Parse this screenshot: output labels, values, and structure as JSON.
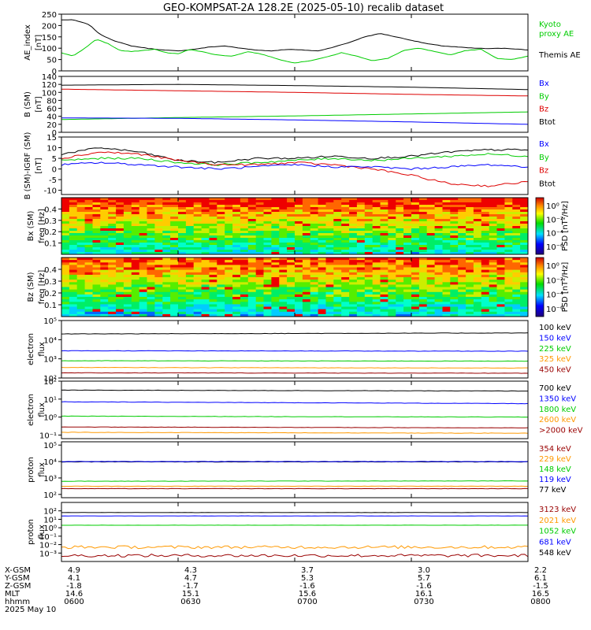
{
  "title": "GEO-KOMPSAT-2A 128.2E (2025-05-10) recalib dataset",
  "chart_data": [
    {
      "panel": "ae",
      "type": "line",
      "ylabel": "AE_index [nT]",
      "ylim": [
        0,
        250
      ],
      "yticks": [
        "0",
        "50",
        "100",
        "150",
        "200",
        "250"
      ],
      "legend": [
        {
          "label": "Kyoto proxy AE",
          "color": "#00cc00"
        },
        {
          "label": "Themis AE",
          "color": "#000000"
        }
      ],
      "series": [
        {
          "name": "Themis AE",
          "color": "#000000",
          "t": [
            0,
            3,
            7,
            10,
            14,
            18,
            22,
            26,
            30,
            34,
            38,
            42,
            46,
            50,
            54,
            58,
            62,
            66,
            70,
            74,
            78,
            82,
            86,
            90,
            94,
            98,
            102,
            106,
            110,
            114,
            118,
            120
          ],
          "y": [
            225,
            225,
            205,
            160,
            130,
            110,
            100,
            92,
            88,
            95,
            105,
            110,
            100,
            92,
            88,
            95,
            92,
            88,
            105,
            125,
            150,
            165,
            150,
            135,
            120,
            110,
            105,
            100,
            98,
            100,
            95,
            92
          ]
        },
        {
          "name": "Kyoto proxy AE",
          "color": "#00cc00",
          "t": [
            0,
            3,
            6,
            9,
            12,
            15,
            18,
            21,
            24,
            27,
            30,
            33,
            36,
            40,
            44,
            48,
            52,
            56,
            60,
            64,
            68,
            72,
            76,
            80,
            84,
            88,
            92,
            96,
            100,
            104,
            108,
            112,
            116,
            120
          ],
          "y": [
            80,
            65,
            100,
            140,
            120,
            90,
            85,
            90,
            95,
            80,
            75,
            95,
            85,
            70,
            65,
            85,
            72,
            50,
            35,
            45,
            60,
            80,
            65,
            45,
            55,
            90,
            100,
            85,
            70,
            90,
            95,
            55,
            50,
            65
          ]
        }
      ]
    },
    {
      "panel": "b_sm",
      "type": "line",
      "ylabel": "B (SM) [nT]",
      "ylim": [
        0,
        140
      ],
      "yticks": [
        "0",
        "20",
        "40",
        "60",
        "80",
        "100",
        "120",
        "140"
      ],
      "legend": [
        {
          "label": "Bx",
          "color": "#0000ff"
        },
        {
          "label": "By",
          "color": "#00cc00"
        },
        {
          "label": "Bz",
          "color": "#dd0000"
        },
        {
          "label": "Btot",
          "color": "#000000"
        }
      ],
      "series": [
        {
          "name": "Btot",
          "color": "#000000",
          "t": [
            0,
            30,
            60,
            90,
            120
          ],
          "y": [
            118,
            120,
            117,
            113,
            107
          ]
        },
        {
          "name": "Bz",
          "color": "#dd0000",
          "t": [
            0,
            30,
            60,
            90,
            120
          ],
          "y": [
            108,
            104,
            100,
            95,
            91
          ]
        },
        {
          "name": "By",
          "color": "#00cc00",
          "t": [
            0,
            30,
            60,
            90,
            120
          ],
          "y": [
            32,
            37,
            41,
            46,
            51
          ]
        },
        {
          "name": "Bx",
          "color": "#0000ff",
          "t": [
            0,
            30,
            60,
            90,
            120
          ],
          "y": [
            36,
            35,
            31,
            26,
            20
          ]
        }
      ]
    },
    {
      "panel": "b_igrf",
      "type": "line",
      "ylabel": "B (SM)-IGRF (SM) [nT]",
      "ylim": [
        -12,
        15
      ],
      "yticks": [
        "-10",
        "-5",
        "0",
        "5",
        "10",
        "15"
      ],
      "legend": [
        {
          "label": "Bx",
          "color": "#0000ff"
        },
        {
          "label": "By",
          "color": "#00cc00"
        },
        {
          "label": "Bz",
          "color": "#dd0000"
        },
        {
          "label": "Btot",
          "color": "#000000"
        }
      ],
      "series": [
        {
          "name": "Btot",
          "color": "#000000",
          "t": [
            0,
            10,
            20,
            30,
            40,
            50,
            60,
            70,
            80,
            90,
            100,
            110,
            120
          ],
          "y": [
            7,
            10,
            8,
            4,
            3,
            5,
            5,
            6,
            5,
            6,
            8,
            9,
            9
          ]
        },
        {
          "name": "By",
          "color": "#00cc00",
          "t": [
            0,
            10,
            20,
            30,
            40,
            50,
            60,
            70,
            80,
            90,
            100,
            110,
            120
          ],
          "y": [
            4,
            5,
            5,
            3,
            2,
            3,
            4,
            5,
            4,
            5,
            6,
            7,
            6
          ]
        },
        {
          "name": "Bz",
          "color": "#dd0000",
          "t": [
            0,
            10,
            20,
            30,
            40,
            50,
            60,
            70,
            80,
            90,
            100,
            110,
            120
          ],
          "y": [
            5,
            8,
            7,
            4,
            2,
            2,
            3,
            2,
            0,
            -3,
            -7,
            -8,
            -6
          ]
        },
        {
          "name": "Bx",
          "color": "#0000ff",
          "t": [
            0,
            10,
            20,
            30,
            40,
            50,
            60,
            70,
            80,
            90,
            100,
            110,
            120
          ],
          "y": [
            2,
            3,
            2,
            1,
            0,
            1,
            2,
            1,
            1,
            0,
            1,
            2,
            1
          ]
        }
      ]
    },
    {
      "panel": "spec_bx",
      "type": "heatmap",
      "ylabel": "Bx (SM) freq [Hz]",
      "ylim": [
        0,
        0.5
      ],
      "yticks": [
        "0.1",
        "0.2",
        "0.3",
        "0.4"
      ],
      "colorbar_label": "PSD [nT²/Hz]",
      "colorbar_ticks": [
        "10⁰",
        "10⁻²",
        "10⁻⁴",
        "10⁻⁶"
      ]
    },
    {
      "panel": "spec_bz",
      "type": "heatmap",
      "ylabel": "Bz (SM) freq [Hz]",
      "ylim": [
        0,
        0.5
      ],
      "yticks": [
        "0.1",
        "0.2",
        "0.3",
        "0.4"
      ],
      "colorbar_label": "PSD [nT²/Hz]",
      "colorbar_ticks": [
        "10⁰",
        "10⁻²",
        "10⁻⁴",
        "10⁻⁶"
      ]
    },
    {
      "panel": "e_flux_low",
      "type": "line",
      "ylabel": "electron flux",
      "ylim_log": [
        2,
        5
      ],
      "yticks": [
        "10²",
        "10³",
        "10⁴",
        "10⁵"
      ],
      "legend": [
        {
          "label": "100 keV",
          "color": "#000000"
        },
        {
          "label": "150 keV",
          "color": "#0000ff"
        },
        {
          "label": "225 keV",
          "color": "#00cc00"
        },
        {
          "label": "325 keV",
          "color": "#ff9900"
        },
        {
          "label": "450 keV",
          "color": "#990000"
        }
      ],
      "series": [
        {
          "name": "100 keV",
          "color": "#000000",
          "t": [
            0,
            120
          ],
          "y": [
            4.3,
            4.35
          ]
        },
        {
          "name": "150 keV",
          "color": "#0000ff",
          "t": [
            0,
            120
          ],
          "y": [
            3.42,
            3.4
          ]
        },
        {
          "name": "225 keV",
          "color": "#00cc00",
          "t": [
            0,
            120
          ],
          "y": [
            2.9,
            2.88
          ]
        },
        {
          "name": "325 keV",
          "color": "#ff9900",
          "t": [
            0,
            120
          ],
          "y": [
            2.55,
            2.52
          ]
        },
        {
          "name": "450 keV",
          "color": "#990000",
          "t": [
            0,
            120
          ],
          "y": [
            2.27,
            2.25
          ]
        }
      ]
    },
    {
      "panel": "e_flux_high",
      "type": "line",
      "ylabel": "electron flux",
      "ylim_log": [
        -1.2,
        2
      ],
      "yticks": [
        "10⁻¹",
        "10⁰",
        "10¹",
        "10²"
      ],
      "legend": [
        {
          "label": "700 keV",
          "color": "#000000"
        },
        {
          "label": "1350 keV",
          "color": "#0000ff"
        },
        {
          "label": "1800 keV",
          "color": "#00cc00"
        },
        {
          "label": "2600 keV",
          "color": "#ff9900"
        },
        {
          "label": ">2000 keV",
          "color": "#990000"
        }
      ],
      "series": [
        {
          "name": "700 keV",
          "color": "#000000",
          "t": [
            0,
            120
          ],
          "y": [
            1.5,
            1.45
          ]
        },
        {
          "name": "1350 keV",
          "color": "#0000ff",
          "t": [
            0,
            120
          ],
          "y": [
            0.85,
            0.75
          ]
        },
        {
          "name": "1800 keV",
          "color": "#00cc00",
          "t": [
            0,
            120
          ],
          "y": [
            0.05,
            0.0
          ]
        },
        {
          "name": ">2000 keV",
          "color": "#990000",
          "t": [
            0,
            120
          ],
          "y": [
            -0.55,
            -0.6
          ]
        },
        {
          "name": "2600 keV",
          "color": "#ff9900",
          "t": [
            0,
            120
          ],
          "y": [
            -0.85,
            -0.9
          ]
        }
      ]
    },
    {
      "panel": "p_flux_low",
      "type": "line",
      "ylabel": "proton flux",
      "ylim_log": [
        1.8,
        5.2
      ],
      "yticks": [
        "10²",
        "10³",
        "10⁴",
        "10⁵"
      ],
      "legend": [
        {
          "label": "354 keV",
          "color": "#990000"
        },
        {
          "label": "229 keV",
          "color": "#ff9900"
        },
        {
          "label": "148 keV",
          "color": "#00cc00"
        },
        {
          "label": "119 keV",
          "color": "#0000ff"
        },
        {
          "label": "77 keV",
          "color": "#000000"
        }
      ],
      "series": [
        {
          "name": "77 keV",
          "color": "#000000",
          "t": [
            0,
            120
          ],
          "y": [
            3.98,
            3.98
          ]
        },
        {
          "name": "119 keV",
          "color": "#0000ff",
          "t": [
            0,
            120
          ],
          "y": [
            4.0,
            4.0
          ]
        },
        {
          "name": "148 keV",
          "color": "#00cc00",
          "t": [
            0,
            120
          ],
          "y": [
            2.8,
            2.82
          ]
        },
        {
          "name": "229 keV",
          "color": "#ff9900",
          "t": [
            0,
            120
          ],
          "y": [
            2.5,
            2.5
          ]
        },
        {
          "name": "354 keV",
          "color": "#990000",
          "t": [
            0,
            120
          ],
          "y": [
            2.35,
            2.35
          ]
        }
      ]
    },
    {
      "panel": "p_flux_high",
      "type": "line",
      "ylabel": "proton flux",
      "ylim_log": [
        -4,
        3
      ],
      "yticks": [
        "10⁻³",
        "10⁻²",
        "10⁻¹",
        "10⁰",
        "10¹",
        "10²"
      ],
      "legend": [
        {
          "label": "3123 keV",
          "color": "#990000"
        },
        {
          "label": "2021 keV",
          "color": "#ff9900"
        },
        {
          "label": "1052 keV",
          "color": "#00cc00"
        },
        {
          "label": "681 keV",
          "color": "#0000ff"
        },
        {
          "label": "548 keV",
          "color": "#000000"
        }
      ],
      "series": [
        {
          "name": "548 keV",
          "color": "#000000",
          "t": [
            0,
            120
          ],
          "y": [
            1.8,
            1.8
          ]
        },
        {
          "name": "681 keV",
          "color": "#0000ff",
          "t": [
            0,
            120
          ],
          "y": [
            1.4,
            1.4
          ]
        },
        {
          "name": "1052 keV",
          "color": "#00cc00",
          "t": [
            0,
            120
          ],
          "y": [
            0.3,
            0.3
          ]
        },
        {
          "name": "2021 keV",
          "color": "#ff9900",
          "t": [
            0,
            120
          ],
          "y": [
            -2.3,
            -2.3
          ]
        },
        {
          "name": "3123 keV",
          "color": "#990000",
          "t": [
            0,
            120
          ],
          "y": [
            -3.3,
            -3.3
          ]
        }
      ]
    }
  ],
  "ephemeris": {
    "row_labels": [
      "X-GSM",
      "Y-GSM",
      "Z-GSM",
      "MLT",
      "hhmm"
    ],
    "date_label": "2025 May 10",
    "columns": [
      [
        "4.9",
        "4.1",
        "-1.8",
        "14.6",
        "0600"
      ],
      [
        "4.3",
        "4.7",
        "-1.7",
        "15.1",
        "0630"
      ],
      [
        "3.7",
        "5.3",
        "-1.6",
        "15.6",
        "0700"
      ],
      [
        "3.0",
        "5.7",
        "-1.6",
        "16.1",
        "0730"
      ],
      [
        "2.2",
        "6.1",
        "-1.5",
        "16.5",
        "0800"
      ]
    ]
  }
}
